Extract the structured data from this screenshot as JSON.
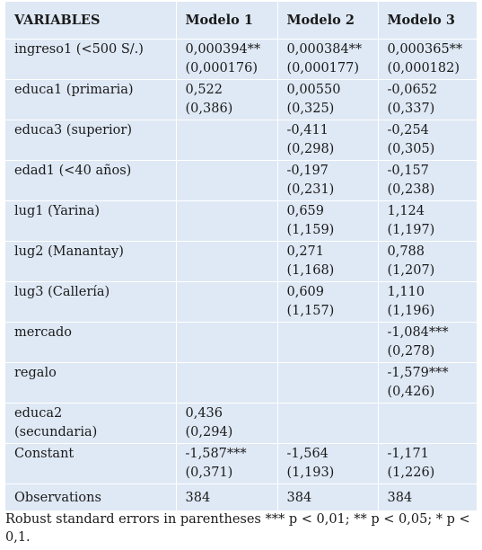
{
  "table": {
    "headers": [
      "VARIABLES",
      "Modelo 1",
      "Modelo 2",
      "Modelo 3"
    ],
    "rows": [
      {
        "label": [
          "ingreso1 (<500 S/.)"
        ],
        "m1": [
          "0,000394**",
          "(0,000176)"
        ],
        "m2": [
          "0,000384**",
          "(0,000177)"
        ],
        "m3": [
          "0,000365**",
          "(0,000182)"
        ]
      },
      {
        "label": [
          "educa1 (primaria)"
        ],
        "m1": [
          "0,522",
          "(0,386)"
        ],
        "m2": [
          "0,00550",
          "(0,325)"
        ],
        "m3": [
          "-0,0652",
          "(0,337)"
        ]
      },
      {
        "label": [
          "educa3 (superior)"
        ],
        "m1": [
          "",
          ""
        ],
        "m2": [
          "-0,411",
          "(0,298)"
        ],
        "m3": [
          "-0,254",
          "(0,305)"
        ]
      },
      {
        "label": [
          "edad1 (<40 años)"
        ],
        "m1": [
          "",
          ""
        ],
        "m2": [
          "-0,197",
          "(0,231)"
        ],
        "m3": [
          "-0,157",
          "(0,238)"
        ]
      },
      {
        "label": [
          "lug1 (Yarina)"
        ],
        "m1": [
          "",
          ""
        ],
        "m2": [
          "0,659",
          "(1,159)"
        ],
        "m3": [
          "1,124",
          "(1,197)"
        ]
      },
      {
        "label": [
          "lug2 (Manantay)"
        ],
        "m1": [
          "",
          ""
        ],
        "m2": [
          "0,271",
          "(1,168)"
        ],
        "m3": [
          "0,788",
          "(1,207)"
        ]
      },
      {
        "label": [
          "lug3 (Callería)"
        ],
        "m1": [
          "",
          ""
        ],
        "m2": [
          "0,609",
          "(1,157)"
        ],
        "m3": [
          "1,110",
          "(1,196)"
        ]
      },
      {
        "label": [
          "mercado"
        ],
        "m1": [
          "",
          ""
        ],
        "m2": [
          "",
          ""
        ],
        "m3": [
          "-1,084***",
          "(0,278)"
        ]
      },
      {
        "label": [
          "regalo"
        ],
        "m1": [
          "",
          ""
        ],
        "m2": [
          "",
          ""
        ],
        "m3": [
          "-1,579***",
          "(0,426)"
        ]
      },
      {
        "label": [
          "educa2",
          "(secundaria)"
        ],
        "m1": [
          "0,436",
          "(0,294)"
        ],
        "m2": [
          "",
          ""
        ],
        "m3": [
          "",
          ""
        ]
      },
      {
        "label": [
          "Constant"
        ],
        "m1": [
          "-1,587***",
          "(0,371)"
        ],
        "m2": [
          "-1,564",
          "(1,193)"
        ],
        "m3": [
          "-1,171",
          "(1,226)"
        ]
      }
    ],
    "observations": {
      "label": "Observations",
      "m1": "384",
      "m2": "384",
      "m3": "384"
    }
  },
  "note": "Robust standard errors in parentheses *** p < 0,01; ** p < 0,05; * p < 0,1."
}
